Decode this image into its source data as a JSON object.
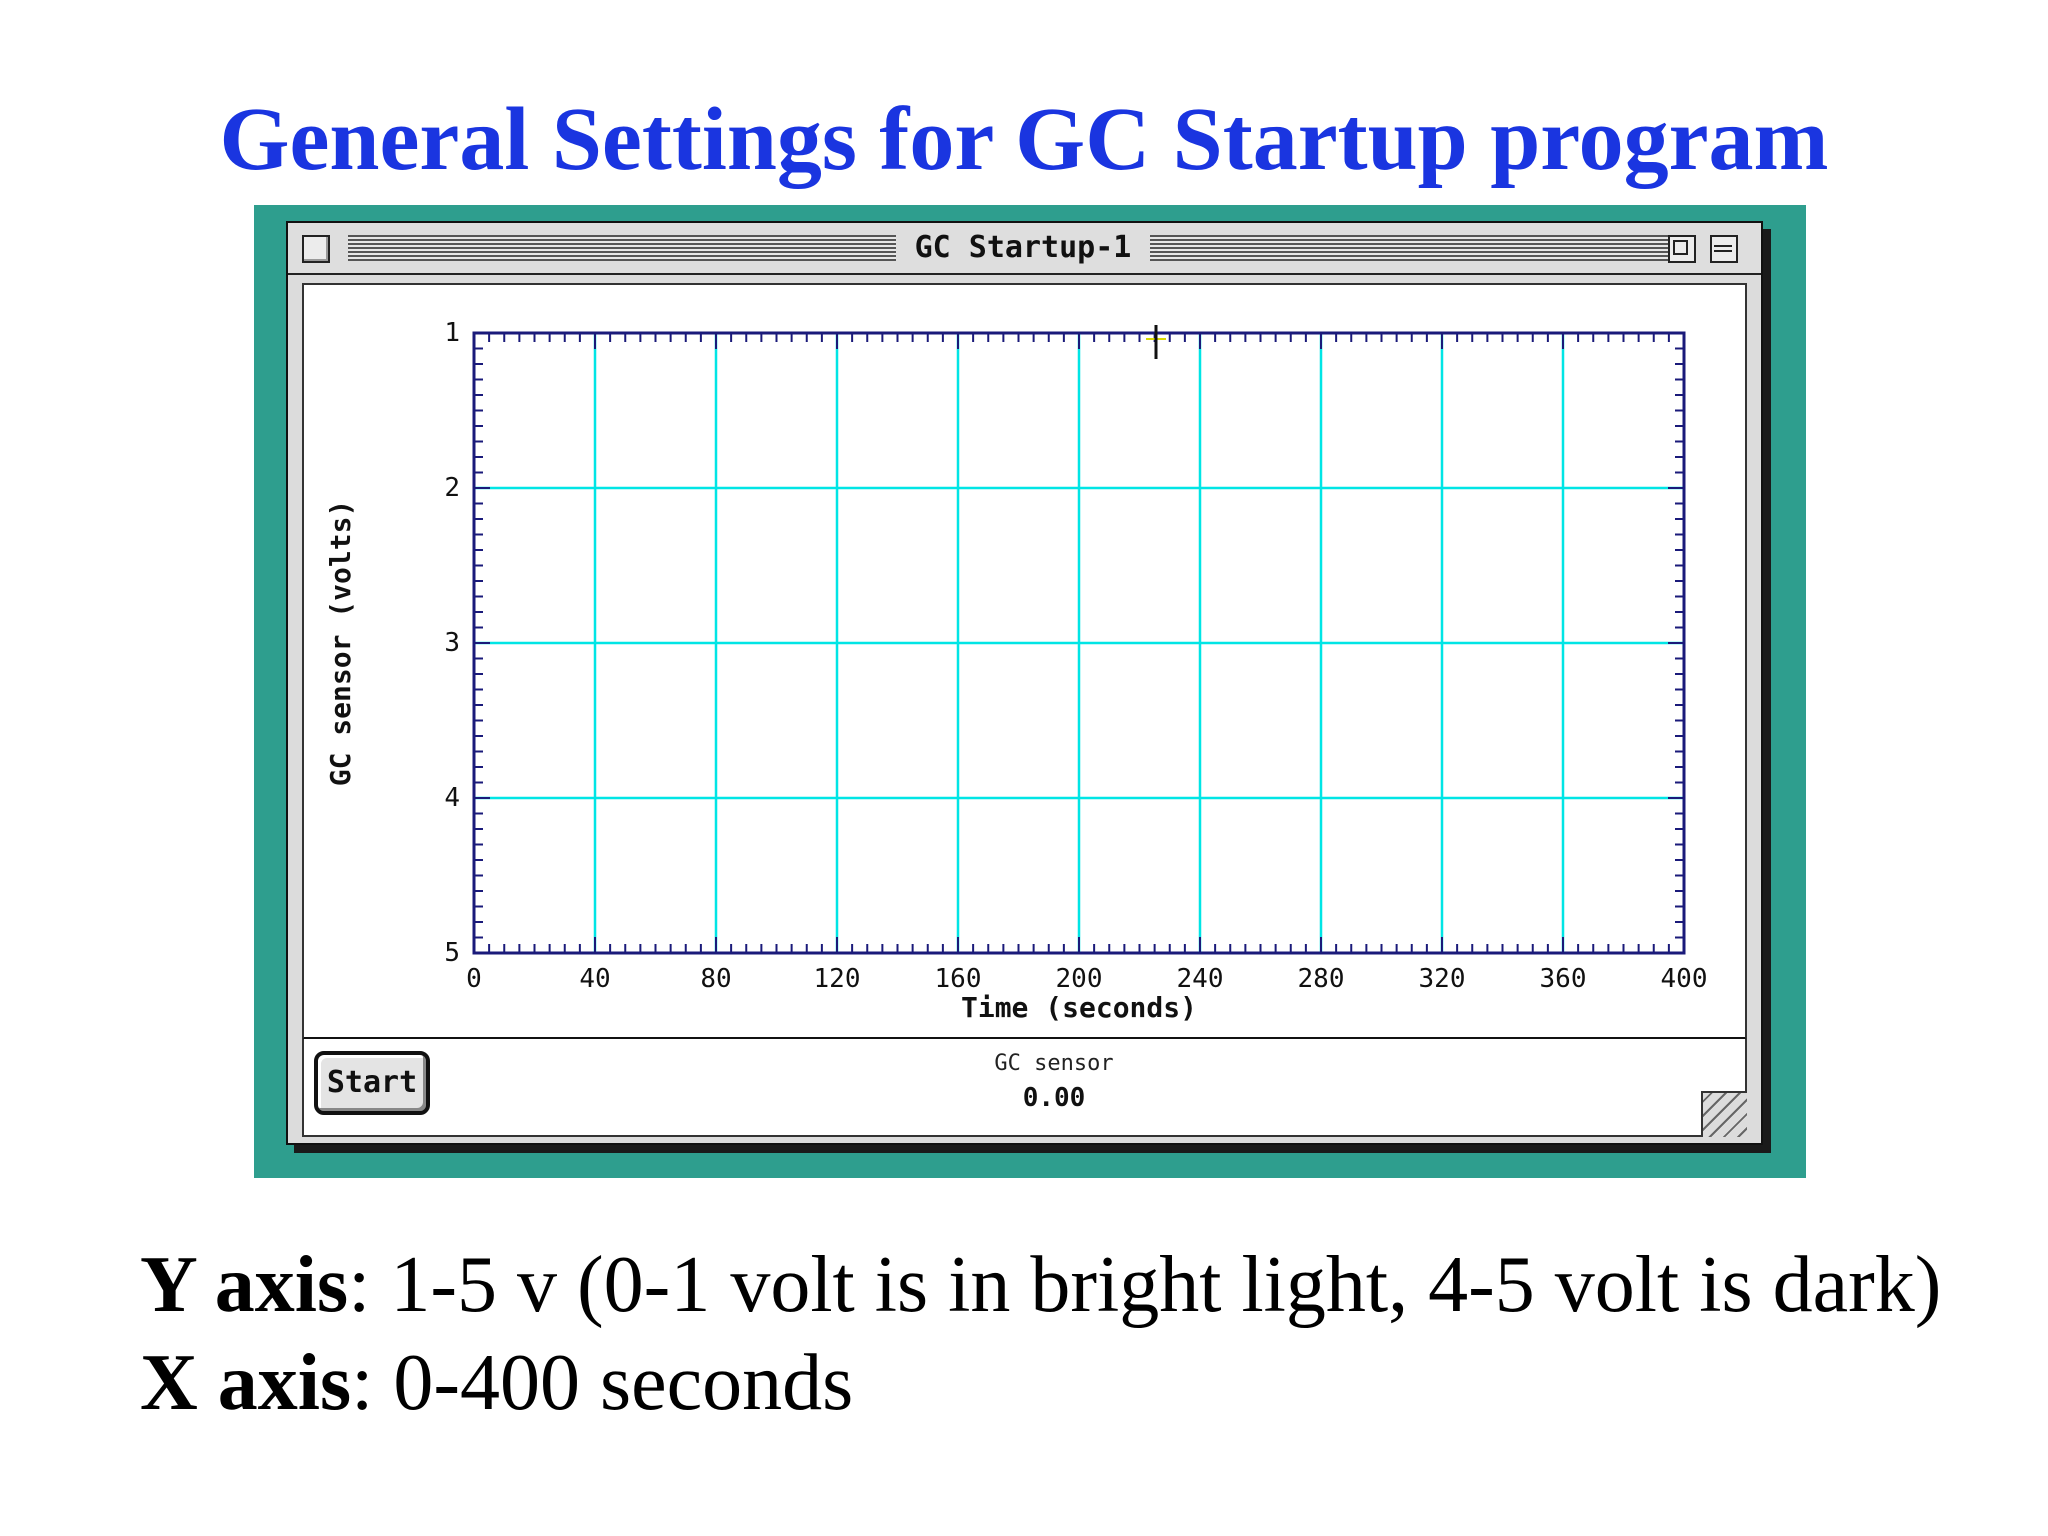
{
  "slide": {
    "title": "General Settings for GC Startup program",
    "title_color": "#1a35e0",
    "background_color": "#2e9e8e"
  },
  "window": {
    "title": "GC Startup-1",
    "icons": [
      "close-box",
      "zoom-box",
      "collapse-box",
      "grow-box"
    ]
  },
  "status": {
    "start_label": "Start",
    "meter_label": "GC sensor",
    "meter_value": "0.00"
  },
  "notes": [
    {
      "label": "Y axis",
      "text": ": 1-5 v (0-1 volt is in bright light, 4-5 volt is dark)"
    },
    {
      "label": "X axis",
      "text": ": 0-400 seconds"
    }
  ],
  "chart_data": {
    "type": "line",
    "title": "",
    "xlabel": "Time (seconds)",
    "ylabel": "GC sensor (volts)",
    "xlim": [
      0,
      400
    ],
    "ylim": [
      1,
      5
    ],
    "y_inverted": true,
    "x_ticks": [
      0,
      40,
      80,
      120,
      160,
      200,
      240,
      280,
      320,
      360,
      400
    ],
    "y_ticks": [
      1,
      2,
      3,
      4,
      5
    ],
    "grid": true,
    "grid_color": "#00e5e5",
    "axis_color": "#1a1a7a",
    "series": []
  }
}
